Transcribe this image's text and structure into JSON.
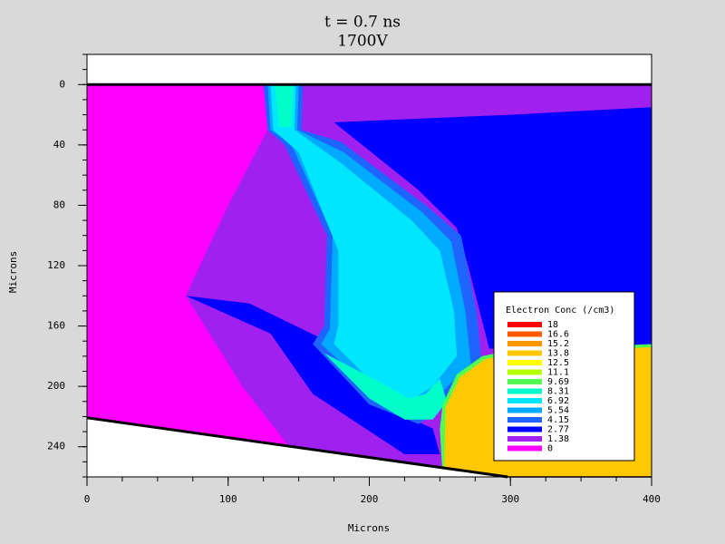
{
  "chart_data": {
    "type": "contour",
    "title": "t = 0.7 ns",
    "subtitle": "1700V",
    "x_label": "Microns",
    "y_label": "Microns",
    "xlim": [
      0,
      400
    ],
    "ylim": [
      -20,
      260
    ],
    "y_inverted": true,
    "xticks": [
      0,
      100,
      200,
      300,
      400
    ],
    "yticks": [
      0,
      40,
      80,
      120,
      160,
      200,
      240
    ],
    "legend": {
      "title": "Electron Conc (/cm3)",
      "levels": [
        18,
        16.6,
        15.2,
        13.8,
        12.5,
        11.1,
        9.69,
        8.31,
        6.92,
        5.54,
        4.15,
        2.77,
        1.38,
        0
      ],
      "colors": [
        "#ff0000",
        "#ff5a00",
        "#ff9600",
        "#ffc800",
        "#ffff00",
        "#b4ff00",
        "#50ff50",
        "#00ffc8",
        "#00e6ff",
        "#00aaff",
        "#1e64ff",
        "#0000ff",
        "#a020f0",
        "#ff00ff"
      ]
    }
  }
}
